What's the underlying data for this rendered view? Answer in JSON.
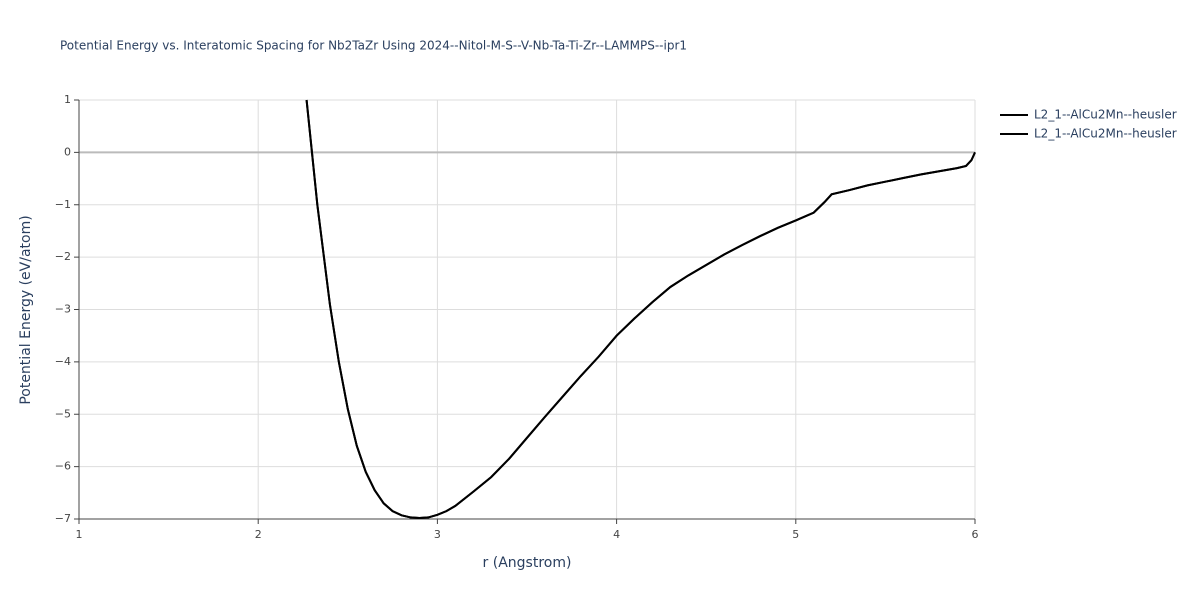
{
  "chart_data": {
    "type": "line",
    "title": "Potential Energy vs. Interatomic Spacing for Nb2TaZr Using 2024--Nitol-M-S--V-Nb-Ta-Ti-Zr--LAMMPS--ipr1",
    "x_label": "r (Angstrom)",
    "y_label": "Potential Energy (eV/atom)",
    "xlim": [
      1,
      6
    ],
    "ylim": [
      -7,
      1
    ],
    "xticks": [
      1,
      2,
      3,
      4,
      5,
      6
    ],
    "yticks": [
      {
        "value": -7,
        "label": "−7"
      },
      {
        "value": -6,
        "label": "−6"
      },
      {
        "value": -5,
        "label": "−5"
      },
      {
        "value": -4,
        "label": "−4"
      },
      {
        "value": -3,
        "label": "−3"
      },
      {
        "value": -2,
        "label": "−2"
      },
      {
        "value": -1,
        "label": "−1"
      },
      0,
      1
    ],
    "grid": true,
    "legend": "right",
    "x": [
      2.27,
      2.33,
      2.4,
      2.45,
      2.5,
      2.55,
      2.6,
      2.65,
      2.7,
      2.75,
      2.8,
      2.85,
      2.9,
      2.95,
      3.0,
      3.05,
      3.1,
      3.2,
      3.3,
      3.4,
      3.5,
      3.6,
      3.7,
      3.8,
      3.9,
      4.0,
      4.1,
      4.2,
      4.3,
      4.4,
      4.5,
      4.6,
      4.7,
      4.8,
      4.9,
      5.0,
      5.1,
      5.16,
      5.2,
      5.3,
      5.4,
      5.5,
      5.6,
      5.7,
      5.8,
      5.9,
      5.95,
      5.98,
      6.0
    ],
    "series": [
      {
        "name": "L2_1--AlCu2Mn--heusler",
        "color": "#000000",
        "values": [
          1.0,
          -1.0,
          -2.9,
          -4.0,
          -4.9,
          -5.6,
          -6.1,
          -6.45,
          -6.7,
          -6.85,
          -6.93,
          -6.97,
          -6.98,
          -6.97,
          -6.92,
          -6.85,
          -6.75,
          -6.48,
          -6.2,
          -5.85,
          -5.45,
          -5.05,
          -4.66,
          -4.27,
          -3.9,
          -3.5,
          -3.17,
          -2.86,
          -2.57,
          -2.35,
          -2.15,
          -1.95,
          -1.77,
          -1.6,
          -1.44,
          -1.3,
          -1.15,
          -0.95,
          -0.8,
          -0.72,
          -0.63,
          -0.56,
          -0.49,
          -0.42,
          -0.36,
          -0.3,
          -0.26,
          -0.15,
          0.0
        ]
      },
      {
        "name": "L2_1--AlCu2Mn--heusler",
        "color": "#000000",
        "values": [
          1.0,
          -1.0,
          -2.9,
          -4.0,
          -4.9,
          -5.6,
          -6.1,
          -6.45,
          -6.7,
          -6.85,
          -6.93,
          -6.97,
          -6.98,
          -6.97,
          -6.92,
          -6.85,
          -6.75,
          -6.48,
          -6.2,
          -5.85,
          -5.45,
          -5.05,
          -4.66,
          -4.27,
          -3.9,
          -3.5,
          -3.17,
          -2.86,
          -2.57,
          -2.35,
          -2.15,
          -1.95,
          -1.77,
          -1.6,
          -1.44,
          -1.3,
          -1.15,
          -0.95,
          -0.8,
          -0.72,
          -0.63,
          -0.56,
          -0.49,
          -0.42,
          -0.36,
          -0.3,
          -0.26,
          -0.15,
          0.0
        ]
      }
    ]
  }
}
